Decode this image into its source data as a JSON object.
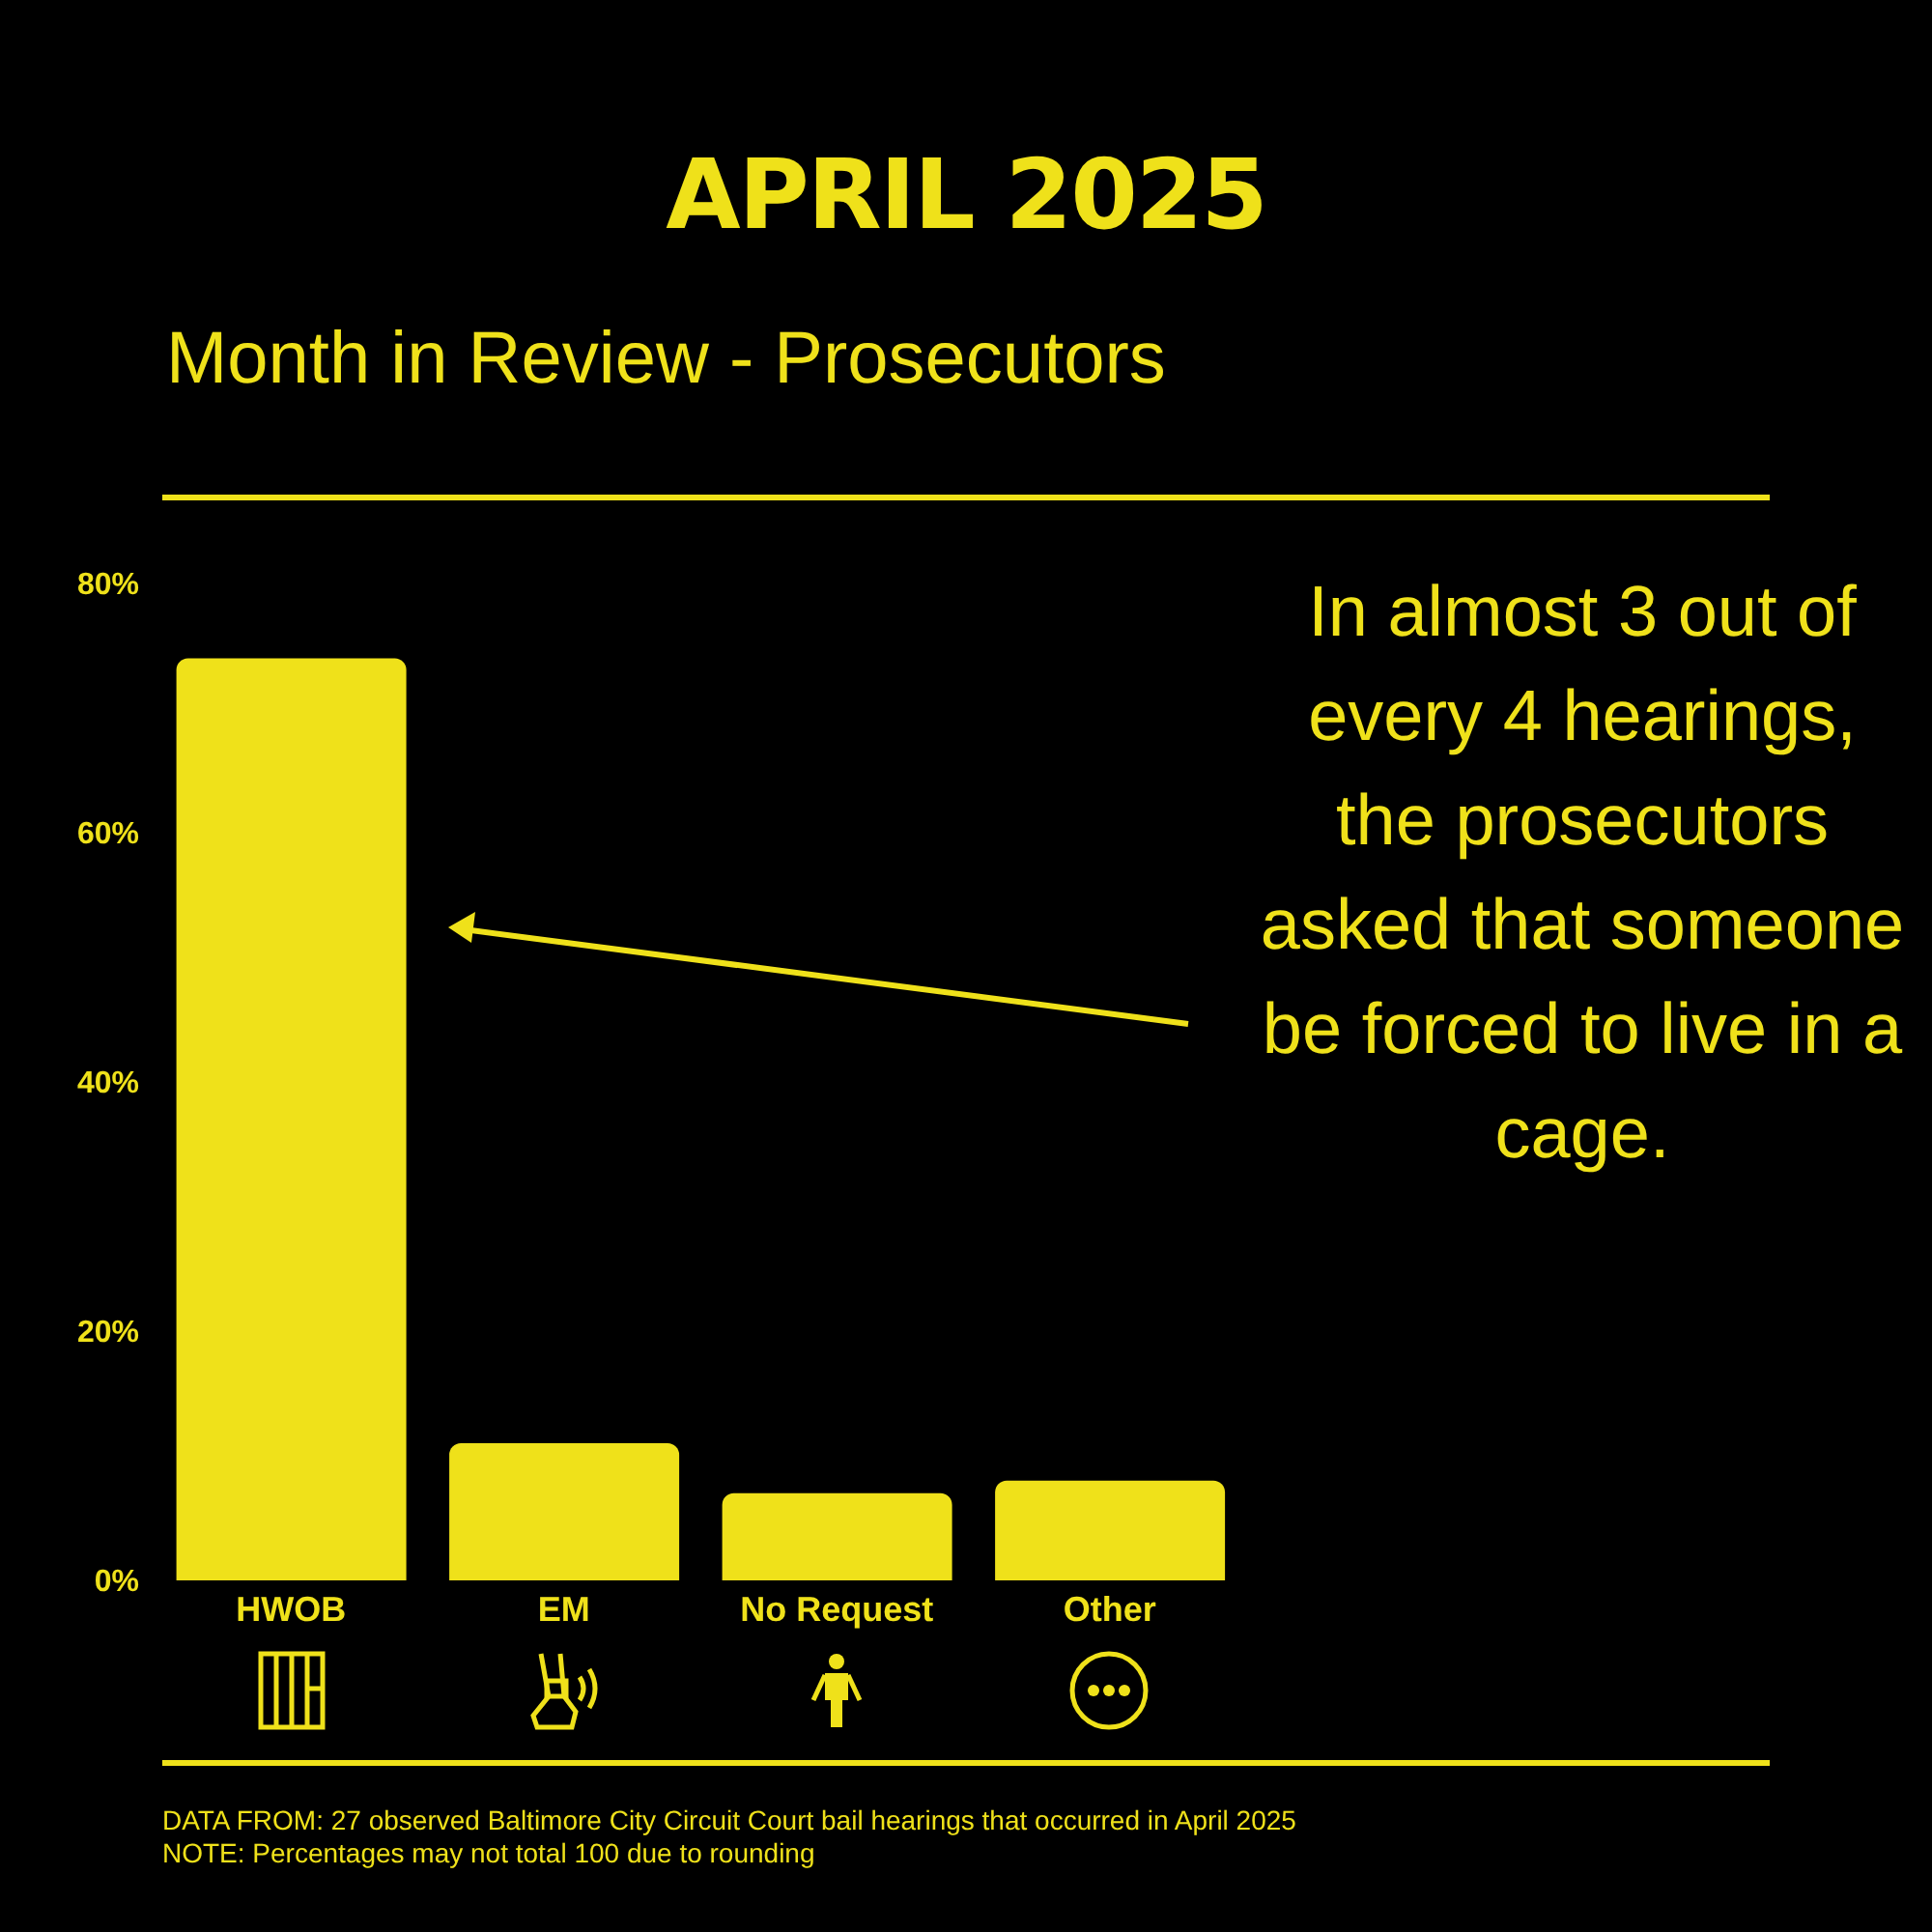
{
  "chart_data": {
    "type": "bar",
    "title": "APRIL 2025",
    "subtitle": "Month in Review - Prosecutors",
    "categories": [
      "HWOB",
      "EM",
      "No Request",
      "Other"
    ],
    "values": [
      74,
      11,
      7,
      8
    ],
    "color": "#efe11a",
    "ylim": [
      0,
      80
    ],
    "yticks": [
      {
        "value": 0,
        "label": "0%"
      },
      {
        "value": 20,
        "label": "20%"
      },
      {
        "value": 40,
        "label": "40%"
      },
      {
        "value": 60,
        "label": "60%"
      },
      {
        "value": 80,
        "label": "80%"
      }
    ],
    "grid": false,
    "legend": false,
    "annotations": [
      "In almost 3 out of every 4 hearings, the prosecutors asked that someone be forced to live in a cage.",
      "DATA FROM: 27 observed Baltimore City Circuit Court bail hearings that occurred in April 2025",
      "NOTE: Percentages may not total 100 due to rounding"
    ]
  }
}
